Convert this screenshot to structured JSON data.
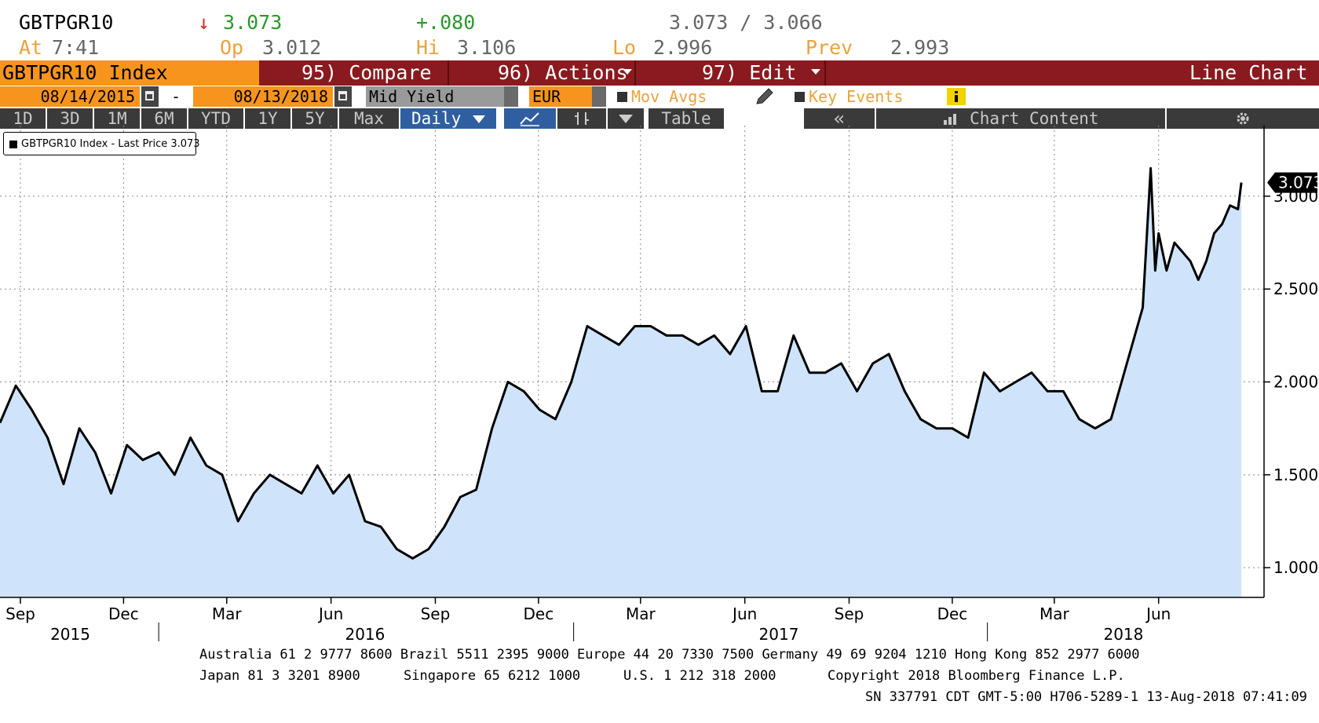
{
  "quote": {
    "ticker": "GBTPGR10",
    "arrow": "↓",
    "last": "3.073",
    "change": "+.080",
    "bid_ask": "3.073 / 3.066",
    "at_label": "At",
    "time": "7:41",
    "open_label": "Op",
    "open": "3.012",
    "high_label": "Hi",
    "high": "3.106",
    "low_label": "Lo",
    "low": "2.996",
    "prev_label": "Prev",
    "prev": "2.993"
  },
  "command_bar": {
    "security": "GBTPGR10 Index",
    "compare": "95) Compare",
    "actions": "96) Actions",
    "edit": "97) Edit",
    "chart_type": "Line Chart"
  },
  "settings": {
    "start_date": "08/14/2015",
    "dash": "-",
    "end_date": "08/13/2018",
    "field": "Mid Yield",
    "currency": "EUR",
    "mov_avgs": "Mov Avgs",
    "key_events": "Key Events"
  },
  "ranges": [
    "1D",
    "3D",
    "1M",
    "6M",
    "YTD",
    "1Y",
    "5Y",
    "Max"
  ],
  "frequency": "Daily",
  "table_label": "Table",
  "collapse_label": "«",
  "chart_content_label": "Chart Content",
  "legend_text": "GBTPGR10 Index - Last Price 3.073",
  "colors": {
    "line": "#000000",
    "fill": "#cfe4fa",
    "accent": "#f7941d",
    "bar": "#8a1a1f"
  },
  "chart_data": {
    "type": "area",
    "series": [
      {
        "name": "GBTPGR10 Index - Last Price",
        "x": [
          "2015-08-14",
          "2015-08-28",
          "2015-09-11",
          "2015-09-25",
          "2015-10-09",
          "2015-10-23",
          "2015-11-06",
          "2015-11-20",
          "2015-12-04",
          "2015-12-18",
          "2016-01-01",
          "2016-01-15",
          "2016-01-29",
          "2016-02-12",
          "2016-02-26",
          "2016-03-11",
          "2016-03-25",
          "2016-04-08",
          "2016-04-22",
          "2016-05-06",
          "2016-05-20",
          "2016-06-03",
          "2016-06-17",
          "2016-07-01",
          "2016-07-15",
          "2016-07-29",
          "2016-08-12",
          "2016-08-26",
          "2016-09-09",
          "2016-09-23",
          "2016-10-07",
          "2016-10-21",
          "2016-11-04",
          "2016-11-18",
          "2016-12-02",
          "2016-12-16",
          "2016-12-30",
          "2017-01-13",
          "2017-01-27",
          "2017-02-10",
          "2017-02-24",
          "2017-03-10",
          "2017-03-24",
          "2017-04-07",
          "2017-04-21",
          "2017-05-05",
          "2017-05-19",
          "2017-06-02",
          "2017-06-16",
          "2017-06-30",
          "2017-07-14",
          "2017-07-28",
          "2017-08-11",
          "2017-08-25",
          "2017-09-08",
          "2017-09-22",
          "2017-10-06",
          "2017-10-20",
          "2017-11-03",
          "2017-11-17",
          "2017-12-01",
          "2017-12-15",
          "2017-12-29",
          "2018-01-12",
          "2018-01-26",
          "2018-02-09",
          "2018-02-23",
          "2018-03-09",
          "2018-03-23",
          "2018-04-06",
          "2018-04-20",
          "2018-05-04",
          "2018-05-18",
          "2018-05-25",
          "2018-05-29",
          "2018-06-01",
          "2018-06-08",
          "2018-06-15",
          "2018-06-22",
          "2018-06-29",
          "2018-07-06",
          "2018-07-13",
          "2018-07-20",
          "2018-07-27",
          "2018-08-03",
          "2018-08-10",
          "2018-08-13"
        ],
        "y": [
          1.78,
          1.98,
          1.85,
          1.7,
          1.45,
          1.75,
          1.62,
          1.4,
          1.66,
          1.58,
          1.62,
          1.5,
          1.7,
          1.55,
          1.5,
          1.25,
          1.4,
          1.5,
          1.45,
          1.4,
          1.55,
          1.4,
          1.5,
          1.25,
          1.22,
          1.1,
          1.05,
          1.1,
          1.22,
          1.38,
          1.42,
          1.75,
          2.0,
          1.95,
          1.85,
          1.8,
          2.0,
          2.3,
          2.25,
          2.2,
          2.3,
          2.3,
          2.25,
          2.25,
          2.2,
          2.25,
          2.15,
          2.3,
          1.95,
          1.95,
          2.25,
          2.05,
          2.05,
          2.1,
          1.95,
          2.1,
          2.15,
          1.95,
          1.8,
          1.75,
          1.75,
          1.7,
          2.05,
          1.95,
          2.0,
          2.05,
          1.95,
          1.95,
          1.8,
          1.75,
          1.8,
          2.1,
          2.4,
          3.15,
          2.6,
          2.8,
          2.6,
          2.75,
          2.7,
          2.65,
          2.55,
          2.65,
          2.8,
          2.85,
          2.95,
          2.93,
          3.073
        ]
      }
    ],
    "x_ticks": [
      {
        "label": "Sep",
        "date": "2015-09-01"
      },
      {
        "label": "Dec",
        "date": "2015-12-01"
      },
      {
        "label": "Mar",
        "date": "2016-03-01"
      },
      {
        "label": "Jun",
        "date": "2016-06-01"
      },
      {
        "label": "Sep",
        "date": "2016-09-01"
      },
      {
        "label": "Dec",
        "date": "2016-12-01"
      },
      {
        "label": "Mar",
        "date": "2017-03-01"
      },
      {
        "label": "Jun",
        "date": "2017-06-01"
      },
      {
        "label": "Sep",
        "date": "2017-09-01"
      },
      {
        "label": "Dec",
        "date": "2017-12-01"
      },
      {
        "label": "Mar",
        "date": "2018-03-01"
      },
      {
        "label": "Jun",
        "date": "2018-06-01"
      }
    ],
    "x_years": [
      {
        "label": "2015",
        "date": "2015-10-15",
        "divider": ""
      },
      {
        "label": "2016",
        "date": "2016-07-01",
        "divider": "2016-01-01"
      },
      {
        "label": "2017",
        "date": "2017-07-01",
        "divider": "2017-01-01"
      },
      {
        "label": "2018",
        "date": "2018-05-01",
        "divider": "2018-01-01"
      }
    ],
    "y_ticks": [
      1.0,
      1.5,
      2.0,
      2.5,
      3.0
    ],
    "y_tick_labels": [
      "1.000",
      "1.500",
      "2.000",
      "2.500",
      "3.000"
    ],
    "ylim": [
      0.84,
      3.38
    ],
    "xlim": [
      "2015-08-14",
      "2018-09-02"
    ],
    "last_value_label": "3.073",
    "grid": true,
    "legend_placement": "top-left"
  },
  "footer": {
    "line1": "Australia 61 2 9777 8600 Brazil 5511 2395 9000 Europe 44 20 7330 7500 Germany 49 69 9204 1210 Hong Kong 852 2977 6000",
    "line2a": "Japan 81 3 3201 8900",
    "line2b": "Singapore 65 6212 1000",
    "line2c": "U.S. 1 212 318 2000",
    "line2d": "Copyright 2018 Bloomberg Finance L.P.",
    "line3": "SN 337791 CDT  GMT-5:00 H706-5289-1 13-Aug-2018 07:41:09"
  }
}
